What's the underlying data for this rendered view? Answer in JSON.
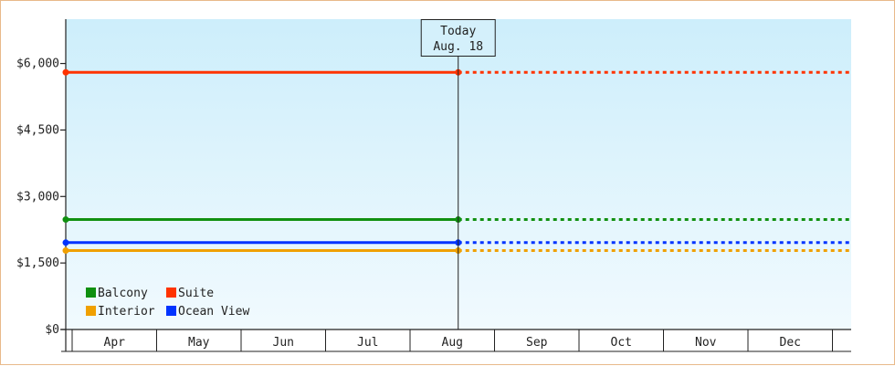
{
  "chart_data": {
    "type": "line",
    "x_categories": [
      "Apr",
      "May",
      "Jun",
      "Jul",
      "Aug",
      "Sep",
      "Oct",
      "Nov",
      "Dec"
    ],
    "ylim": [
      0,
      7000
    ],
    "yticks": [
      {
        "value": 0,
        "label": "$0"
      },
      {
        "value": 1500,
        "label": "$1,500"
      },
      {
        "value": 3000,
        "label": "$3,000"
      },
      {
        "value": 4500,
        "label": "$4,500"
      },
      {
        "value": 6000,
        "label": "$6,000"
      }
    ],
    "today": {
      "line1": "Today",
      "line2": "Aug. 18",
      "month_position": 4.57
    },
    "series": [
      {
        "name": "Suite",
        "color": "#ff3300",
        "value": 5800
      },
      {
        "name": "Balcony",
        "color": "#109010",
        "value": 2480
      },
      {
        "name": "Ocean View",
        "color": "#0033ff",
        "value": 1960
      },
      {
        "name": "Interior",
        "color": "#f0a000",
        "value": 1780
      }
    ],
    "legend": {
      "placement": "bottom-left",
      "rows": [
        [
          "Balcony",
          "Suite"
        ],
        [
          "Interior",
          "Ocean View"
        ]
      ]
    },
    "grid": false,
    "projection_style": "dotted after today"
  }
}
